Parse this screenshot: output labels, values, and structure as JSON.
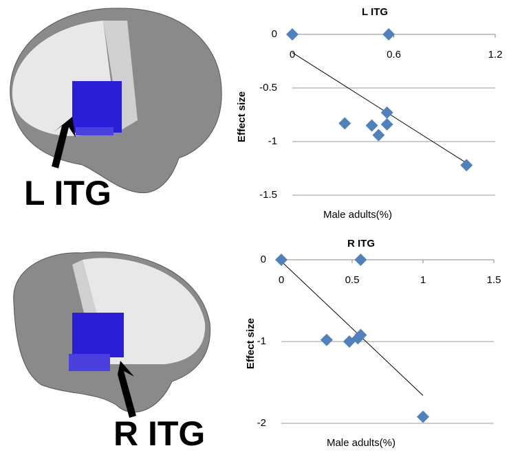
{
  "brain_labels": [
    "L ITG",
    "R ITG"
  ],
  "chart_data": [
    {
      "type": "scatter",
      "title": "L  ITG",
      "x_label": "Male adults(%)",
      "y_label": "Effect size",
      "color": "#4f81bd",
      "x": [
        0,
        0.57,
        0.31,
        0.47,
        0.51,
        0.56,
        0.56,
        1.03
      ],
      "values": [
        0,
        0,
        -0.83,
        -0.85,
        -0.94,
        -0.84,
        -0.73,
        -1.22
      ],
      "trendline": {
        "x": [
          0,
          1.03
        ],
        "y": [
          -0.17,
          -1.2
        ]
      },
      "xlim": [
        0,
        1.2
      ],
      "xticks": [
        0,
        0.6,
        1.2
      ],
      "ylim": [
        -1.5,
        0
      ],
      "yticks": [
        0,
        -0.5,
        -1,
        -1.5
      ],
      "grid": true
    },
    {
      "type": "scatter",
      "title": "R  ITG",
      "x_label": "Male adults(%)",
      "y_label": "Effect size",
      "color": "#4f81bd",
      "x": [
        0,
        0.56,
        0.32,
        0.48,
        0.54,
        0.56,
        1.0
      ],
      "values": [
        0,
        0,
        -0.98,
        -1.0,
        -0.96,
        -0.92,
        -1.92
      ],
      "trendline": {
        "x": [
          0,
          1.0
        ],
        "y": [
          -0.02,
          -1.66
        ]
      },
      "xlim": [
        0,
        1.5
      ],
      "xticks": [
        0,
        0.5,
        1,
        1.5
      ],
      "ylim": [
        -2,
        0
      ],
      "yticks": [
        0,
        -1,
        -2
      ],
      "grid": true
    }
  ]
}
